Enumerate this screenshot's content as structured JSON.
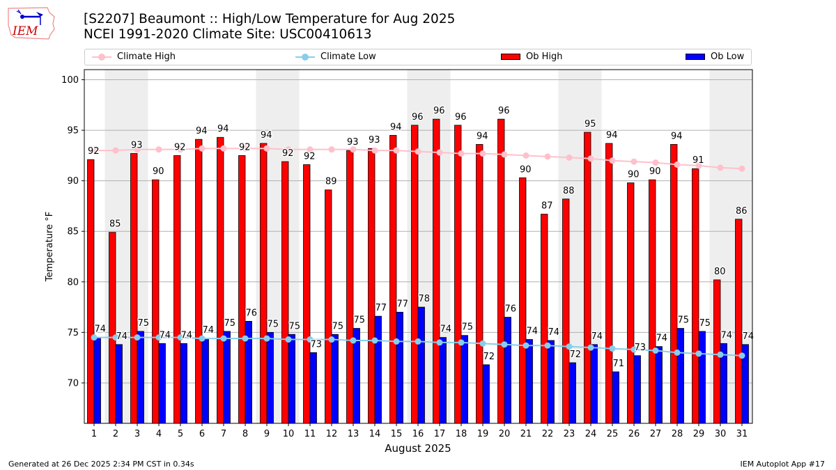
{
  "header": {
    "title_line1": "[S2207] Beaumont :: High/Low Temperature for Aug 2025",
    "title_line2": "NCEI 1991-2020 Climate Site: USC00410613",
    "logo_text": "IEM"
  },
  "legend": {
    "items": [
      {
        "label": "Climate High",
        "type": "line-marker",
        "color": "#ffc0cb"
      },
      {
        "label": "Climate Low",
        "type": "line-marker",
        "color": "#87ceeb"
      },
      {
        "label": "Ob High",
        "type": "bar",
        "color": "#ff0000"
      },
      {
        "label": "Ob Low",
        "type": "bar",
        "color": "#0000ff"
      }
    ]
  },
  "footer": {
    "left": "Generated at 26 Dec 2025 2:34 PM CST in 0.34s",
    "right": "IEM Autoplot App #17"
  },
  "chart_data": {
    "type": "bar",
    "title": "[S2207] Beaumont :: High/Low Temperature for Aug 2025",
    "subtitle": "NCEI 1991-2020 Climate Site: USC00410613",
    "xlabel": "August 2025",
    "ylabel": "Temperature °F",
    "ylim": [
      66,
      101
    ],
    "yticks": [
      70,
      75,
      80,
      85,
      90,
      95,
      100
    ],
    "grid": true,
    "legend_position": "top (above plot)",
    "weekend_shading_days": [
      [
        2,
        3
      ],
      [
        9,
        10
      ],
      [
        16,
        17
      ],
      [
        23,
        24
      ],
      [
        30,
        31
      ]
    ],
    "categories": [
      "1",
      "2",
      "3",
      "4",
      "5",
      "6",
      "7",
      "8",
      "9",
      "10",
      "11",
      "12",
      "13",
      "14",
      "15",
      "16",
      "17",
      "18",
      "19",
      "20",
      "21",
      "22",
      "23",
      "24",
      "25",
      "26",
      "27",
      "28",
      "29",
      "30",
      "31"
    ],
    "series": [
      {
        "name": "Ob High",
        "kind": "bar",
        "color": "#ff0000",
        "values": [
          92.1,
          84.9,
          92.7,
          90.1,
          92.5,
          94.1,
          94.3,
          92.5,
          93.7,
          91.9,
          91.6,
          89.1,
          93.0,
          93.2,
          94.5,
          95.5,
          96.1,
          95.5,
          93.6,
          96.1,
          90.3,
          86.7,
          88.2,
          94.8,
          93.7,
          89.8,
          90.1,
          93.6,
          91.2,
          80.2,
          86.2
        ],
        "labels": [
          "92",
          "85",
          "93",
          "90",
          "92",
          "94",
          "94",
          "92",
          "94",
          "92",
          "92",
          "89",
          "93",
          "93",
          "94",
          "96",
          "96",
          "96",
          "94",
          "96",
          "90",
          "87",
          "88",
          "95",
          "94",
          "90",
          "90",
          "94",
          "91",
          "80",
          "86"
        ]
      },
      {
        "name": "Ob Low",
        "kind": "bar",
        "color": "#0000ff",
        "values": [
          74.5,
          73.8,
          75.1,
          73.9,
          73.9,
          74.4,
          75.1,
          76.1,
          75.0,
          74.8,
          73.0,
          74.8,
          75.4,
          76.6,
          77.0,
          77.5,
          74.5,
          74.7,
          71.8,
          76.5,
          74.3,
          74.2,
          72.0,
          73.8,
          71.1,
          72.7,
          73.6,
          75.4,
          75.1,
          73.9,
          73.8
        ],
        "labels": [
          "74",
          "74",
          "75",
          "74",
          "74",
          "74",
          "75",
          "76",
          "75",
          "75",
          "73",
          "75",
          "75",
          "77",
          "77",
          "78",
          "74",
          "75",
          "72",
          "76",
          "74",
          "74",
          "72",
          "74",
          "71",
          "73",
          "74",
          "75",
          "75",
          "74",
          "74"
        ]
      },
      {
        "name": "Climate High",
        "kind": "line",
        "color": "#ffc0cb",
        "values": [
          93.0,
          93.0,
          93.1,
          93.1,
          93.1,
          93.2,
          93.2,
          93.2,
          93.2,
          93.1,
          93.1,
          93.1,
          93.1,
          93.0,
          93.0,
          92.9,
          92.8,
          92.7,
          92.7,
          92.6,
          92.5,
          92.4,
          92.3,
          92.2,
          92.0,
          91.9,
          91.8,
          91.6,
          91.5,
          91.3,
          91.2
        ]
      },
      {
        "name": "Climate Low",
        "kind": "line",
        "color": "#87ceeb",
        "values": [
          74.5,
          74.5,
          74.5,
          74.5,
          74.5,
          74.4,
          74.4,
          74.4,
          74.4,
          74.3,
          74.3,
          74.3,
          74.2,
          74.2,
          74.1,
          74.1,
          74.0,
          74.0,
          73.9,
          73.8,
          73.7,
          73.7,
          73.6,
          73.5,
          73.4,
          73.3,
          73.2,
          73.0,
          72.9,
          72.8,
          72.7
        ]
      }
    ]
  }
}
